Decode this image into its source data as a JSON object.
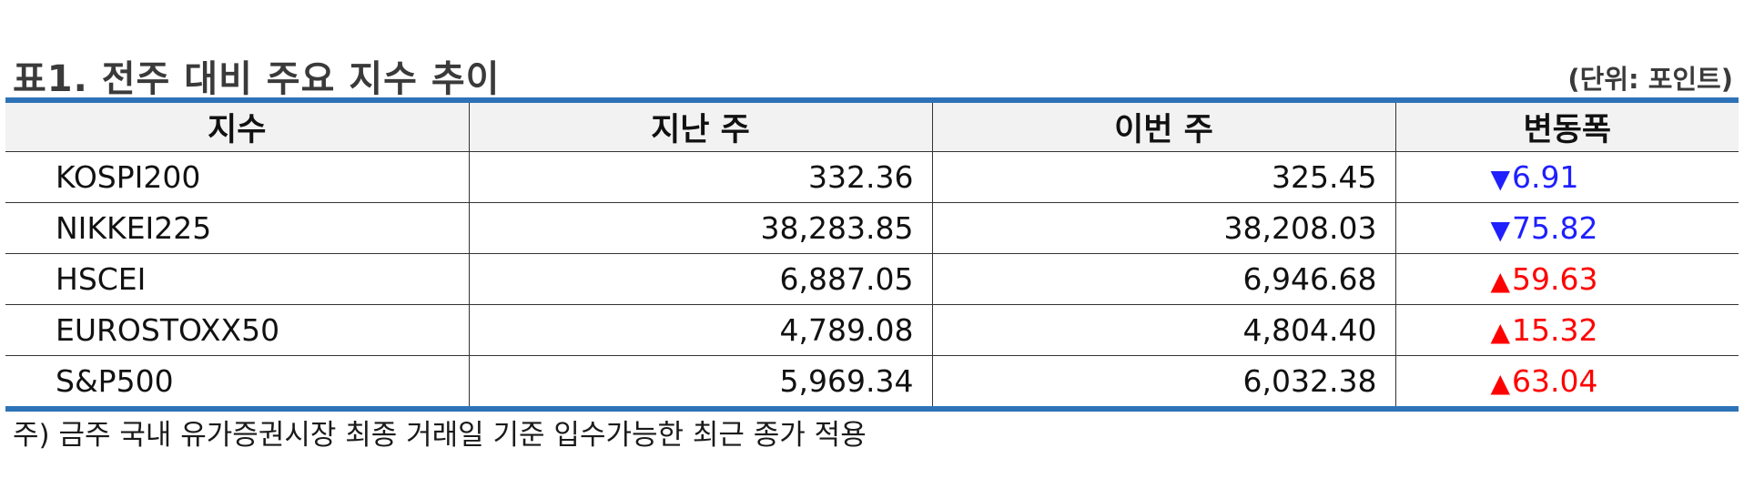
{
  "title": "표1. 전주 대비 주요 지수 추이",
  "unit": "(단위: 포인트)",
  "colors": {
    "rule": "#2e73b8",
    "header_bg": "#f2f2f2",
    "down": "#1f1fff",
    "up": "#ff0000"
  },
  "table": {
    "headers": [
      "지수",
      "지난 주",
      "이번 주",
      "변동폭"
    ],
    "rows": [
      {
        "name": "KOSPI200",
        "last_week": "332.36",
        "this_week": "325.45",
        "direction": "down",
        "arrow": "▼",
        "change": "6.91"
      },
      {
        "name": "NIKKEI225",
        "last_week": "38,283.85",
        "this_week": "38,208.03",
        "direction": "down",
        "arrow": "▼",
        "change": "75.82"
      },
      {
        "name": "HSCEI",
        "last_week": "6,887.05",
        "this_week": "6,946.68",
        "direction": "up",
        "arrow": "▲",
        "change": "59.63"
      },
      {
        "name": "EUROSTOXX50",
        "last_week": "4,789.08",
        "this_week": "4,804.40",
        "direction": "up",
        "arrow": "▲",
        "change": "15.32"
      },
      {
        "name": "S&P500",
        "last_week": "5,969.34",
        "this_week": "6,032.38",
        "direction": "up",
        "arrow": "▲",
        "change": "63.04"
      }
    ]
  },
  "note": "주) 금주 국내 유가증권시장 최종 거래일 기준 입수가능한 최근 종가 적용"
}
